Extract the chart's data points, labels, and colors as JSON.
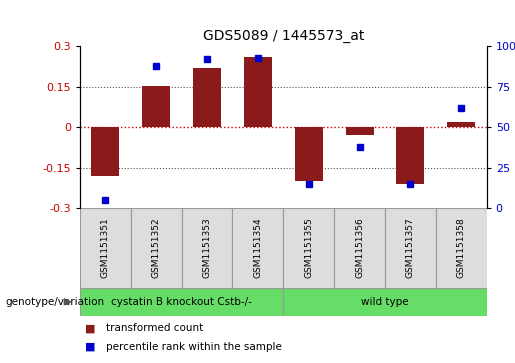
{
  "title": "GDS5089 / 1445573_at",
  "samples": [
    "GSM1151351",
    "GSM1151352",
    "GSM1151353",
    "GSM1151354",
    "GSM1151355",
    "GSM1151356",
    "GSM1151357",
    "GSM1151358"
  ],
  "bar_values": [
    -0.18,
    0.155,
    0.22,
    0.26,
    -0.2,
    -0.03,
    -0.21,
    0.02
  ],
  "percentile_values": [
    5,
    88,
    92,
    93,
    15,
    38,
    15,
    62
  ],
  "bar_color": "#8B1A1A",
  "dot_color": "#0000CD",
  "ylim": [
    -0.3,
    0.3
  ],
  "yticks_left": [
    -0.3,
    -0.15,
    0,
    0.15,
    0.3
  ],
  "yticks_right": [
    0,
    25,
    50,
    75,
    100
  ],
  "group1_samples": 4,
  "group1_label": "cystatin B knockout Cstb-/-",
  "group2_label": "wild type",
  "group_color": "#66DD66",
  "xlabel_label": "genotype/variation",
  "legend_bar_label": "transformed count",
  "legend_dot_label": "percentile rank within the sample",
  "zero_line_color": "#CC0000",
  "grid_color": "#555555",
  "sample_bg": "#DDDDDD",
  "sample_border": "#999999"
}
